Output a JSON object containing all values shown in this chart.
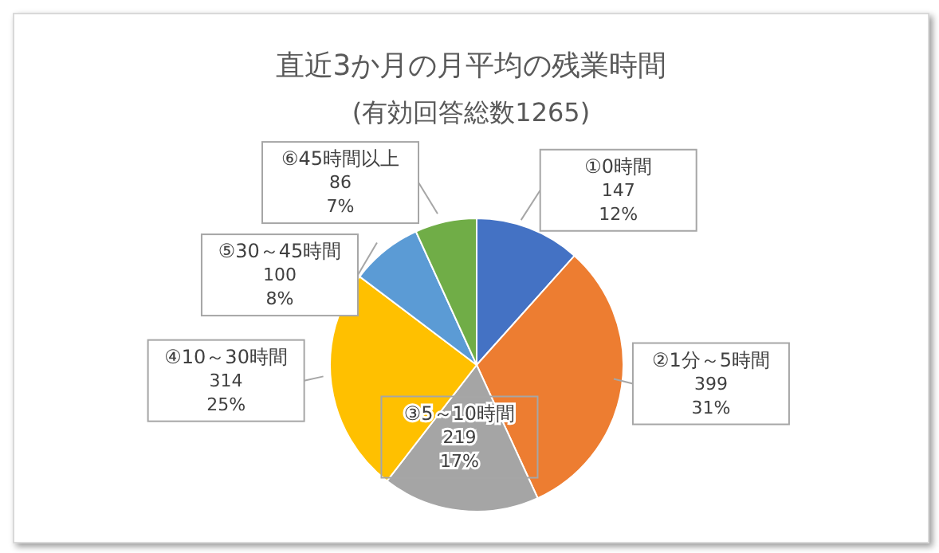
{
  "chart_data": {
    "type": "pie",
    "title": "直近3か月の月平均の残業時間",
    "subtitle": "(有効回答総数1265)",
    "categories": [
      "①0時間",
      "②1分～5時間",
      "③5～10時間",
      "④10～30時間",
      "⑤30～45時間",
      "⑥45時間以上"
    ],
    "values": [
      147,
      399,
      219,
      314,
      100,
      86
    ],
    "value_labels": [
      "147\n12%",
      "399\n31%",
      "219\n17%",
      "314\n25%",
      "100\n8%",
      "86\n7%"
    ],
    "colors": [
      "#4472c4",
      "#ed7d31",
      "#a5a5a5",
      "#ffc000",
      "#5b9bd5",
      "#70ad47"
    ],
    "legend": false
  }
}
